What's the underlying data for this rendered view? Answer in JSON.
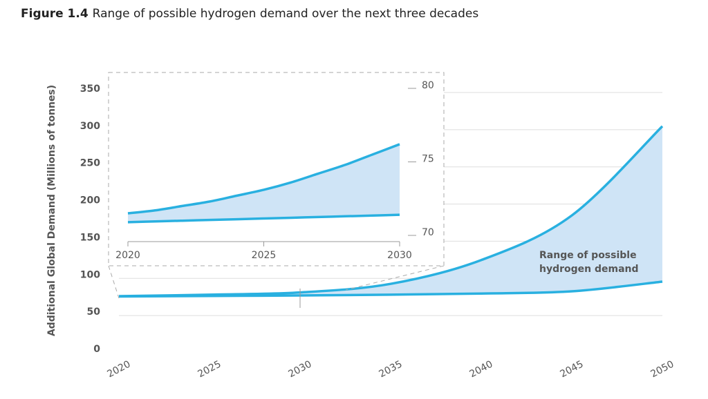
{
  "chart_data": [
    {
      "type": "range-area",
      "title_label": "Figure 1.4",
      "title": "Range of possible hydrogen demand over the next three decades",
      "y_label": "Additional Global Demand (Millions of tonnes)",
      "annotation": [
        "Range of possible",
        "hydrogen demand"
      ],
      "x": [
        2020,
        2025,
        2030,
        2035,
        2040,
        2045,
        2050
      ],
      "series": [
        {
          "color": "#29b0e0",
          "values": [
            71.5,
            73.5,
            76.5,
            88,
            120,
            180,
            300
          ]
        },
        {
          "color": "#29b0e0",
          "values": [
            71,
            71.7,
            72.4,
            73.5,
            75,
            78,
            91
          ]
        }
      ],
      "fill": "#cfe4f6",
      "xlim": [
        2020,
        2050
      ],
      "xticks": [
        2020,
        2025,
        2030,
        2035,
        2040,
        2045,
        2050
      ],
      "ylim": [
        0,
        350
      ],
      "yticks": [
        0,
        50,
        100,
        150,
        200,
        250,
        300,
        350
      ],
      "grid": true
    },
    {
      "type": "range-area",
      "x": [
        2020,
        2021,
        2022,
        2023,
        2024,
        2025,
        2026,
        2027,
        2028,
        2029,
        2030
      ],
      "series": [
        {
          "color": "#29b0e0",
          "values": [
            71.5,
            71.7,
            72.0,
            72.3,
            72.7,
            73.1,
            73.6,
            74.2,
            74.8,
            75.5,
            76.2
          ]
        },
        {
          "color": "#29b0e0",
          "values": [
            70.9,
            70.95,
            71.0,
            71.05,
            71.1,
            71.15,
            71.2,
            71.25,
            71.3,
            71.35,
            71.4
          ]
        }
      ],
      "fill": "#cfe4f6",
      "xlim": [
        2020,
        2030
      ],
      "xticks": [
        2020,
        2025,
        2030
      ],
      "ylim": [
        70,
        80
      ],
      "yticks": [
        70,
        75,
        80
      ],
      "grid": false
    }
  ]
}
